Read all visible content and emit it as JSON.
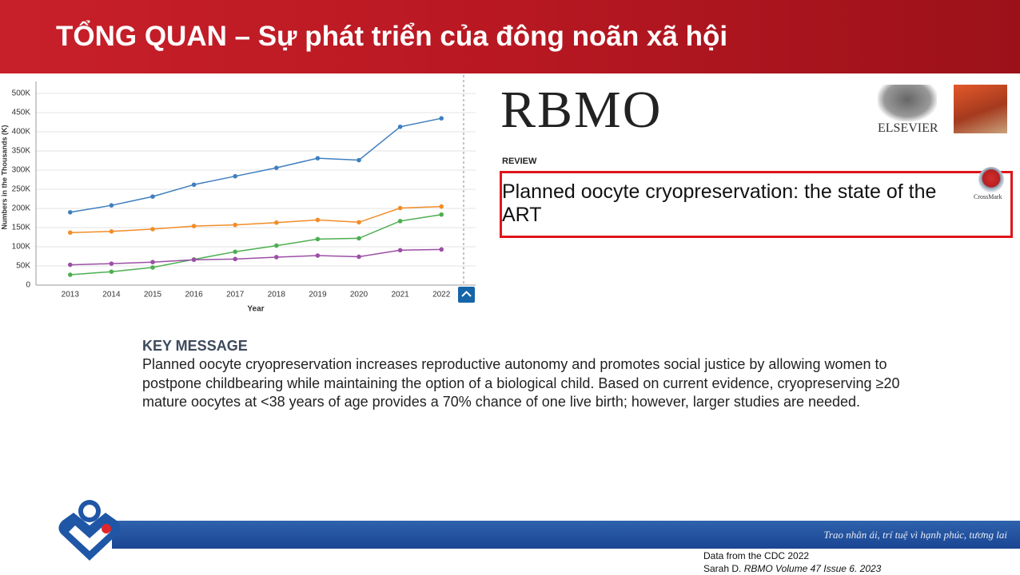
{
  "header": {
    "title": "TỔNG QUAN – Sự phát triển của đông noãn xã hội"
  },
  "chart_data": {
    "type": "line",
    "x_label": "Year",
    "y_label": "Numbers in the Thousands (K)",
    "categories": [
      "2013",
      "2014",
      "2015",
      "2016",
      "2017",
      "2018",
      "2019",
      "2020",
      "2021",
      "2022"
    ],
    "series": [
      {
        "color": "#3f7fbf",
        "values": [
          190,
          208,
          231,
          262,
          284,
          306,
          331,
          326,
          413,
          435
        ]
      },
      {
        "color": "#f28c28",
        "values": [
          137,
          140,
          146,
          154,
          157,
          163,
          170,
          164,
          201,
          205
        ]
      },
      {
        "color": "#4caf50",
        "values": [
          27,
          35,
          46,
          67,
          87,
          103,
          120,
          122,
          167,
          184
        ]
      },
      {
        "color": "#9c4fa6",
        "values": [
          53,
          56,
          60,
          66,
          68,
          73,
          77,
          74,
          91,
          93
        ]
      }
    ],
    "ylim": [
      0,
      500
    ],
    "yticks": [
      0,
      {
        "value": 50,
        "label": "50K"
      },
      {
        "value": 100,
        "label": "100K"
      },
      {
        "value": 150,
        "label": "150K"
      },
      {
        "value": 200,
        "label": "200K"
      },
      {
        "value": 250,
        "label": "250K"
      },
      {
        "value": 300,
        "label": "300K"
      },
      {
        "value": 350,
        "label": "350K"
      },
      {
        "value": 400,
        "label": "400K"
      },
      {
        "value": 450,
        "label": "450K"
      },
      {
        "value": 500,
        "label": "500K"
      }
    ],
    "grid": true
  },
  "article": {
    "journal": "RBMO",
    "publisher": "ELSEVIER",
    "section": "REVIEW",
    "title": "Planned oocyte cryopreservation: the state of the ART",
    "crossmark": "CrossMark"
  },
  "key_message": {
    "heading": "KEY MESSAGE",
    "lines": [
      "Planned oocyte cryopreservation increases reproductive autonomy and promotes social justice by allowing women to",
      "postpone childbearing while maintaining the option of a biological child. Based on current evidence, cryopreserving ≥20",
      "mature oocytes at <38 years of age provides a 70% chance of one live birth; however, larger studies are needed."
    ]
  },
  "footer": {
    "motto": "Trao nhân ái, trí tuệ vì hạnh phúc, tương lai"
  },
  "source": {
    "line1": "Data from the CDC 2022",
    "author": "Sarah D.",
    "journal": "RBMO Volume 47 Issue 6. 2023"
  }
}
